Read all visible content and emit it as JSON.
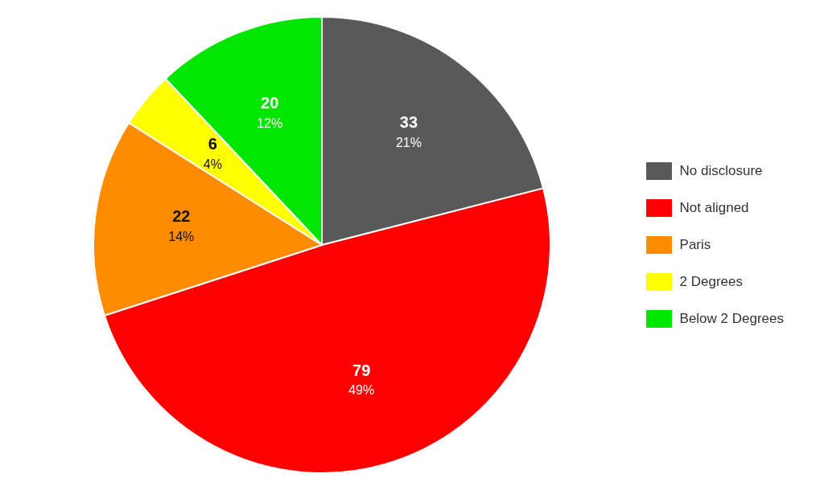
{
  "chart_data": {
    "type": "pie",
    "categories": [
      "No disclosure",
      "Not aligned",
      "Paris",
      "2 Degrees",
      "Below 2 Degrees"
    ],
    "values": [
      21,
      49,
      14,
      4,
      12
    ],
    "value_labels": [
      "21%",
      "49%",
      "14%",
      "4%",
      "12%"
    ],
    "counts": [
      33,
      79,
      22,
      6,
      20
    ],
    "colors": [
      "#595959",
      "#ff0000",
      "#ff8c00",
      "#ffff00",
      "#00e600"
    ],
    "data_labels": true,
    "legend": "right"
  }
}
